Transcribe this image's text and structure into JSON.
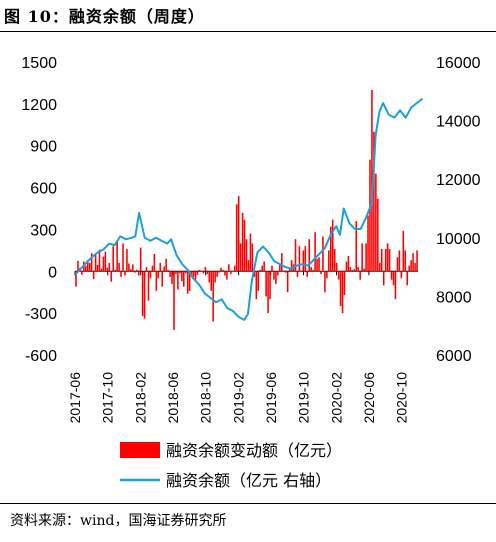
{
  "figure": {
    "title": "图 10：融资余额（周度）",
    "source": "资料来源：wind，国海证券研究所"
  },
  "chart_data": {
    "type": "bar+line",
    "left_axis": {
      "ylim": [
        -600,
        1500
      ],
      "ticks": [
        -600,
        -300,
        0,
        300,
        600,
        900,
        1200,
        1500
      ]
    },
    "right_axis": {
      "ylim": [
        6000,
        16000
      ],
      "ticks": [
        6000,
        8000,
        10000,
        12000,
        14000,
        16000
      ]
    },
    "x_ticks": [
      "2017-06",
      "2017-10",
      "2018-02",
      "2018-06",
      "2018-10",
      "2019-02",
      "2019-06",
      "2019-10",
      "2020-02",
      "2020-06",
      "2020-10"
    ],
    "x_range": [
      "2017-06",
      "2020-12"
    ],
    "legend": [
      {
        "label": "融资余额变动额（亿元）",
        "color": "#ff0000",
        "marker": "bar"
      },
      {
        "label": "融资余额（亿元 右轴）",
        "color": "#1c9fde",
        "marker": "line"
      }
    ],
    "series": [
      {
        "name": "融资余额变动额（亿元）",
        "axis": "left",
        "color": "#ff0000",
        "values": [
          -110,
          75,
          25,
          -25,
          70,
          40,
          80,
          60,
          130,
          -55,
          125,
          45,
          155,
          20,
          105,
          140,
          25,
          60,
          -75,
          180,
          10,
          210,
          60,
          -40,
          200,
          -30,
          160,
          55,
          15,
          50,
          -10,
          10,
          -30,
          170,
          -320,
          -340,
          30,
          -210,
          -50,
          40,
          125,
          -140,
          -50,
          60,
          -110,
          35,
          90,
          10,
          -40,
          -90,
          -420,
          -20,
          -130,
          -15,
          -70,
          -110,
          -15,
          -160,
          -140,
          -30,
          -40,
          -60,
          -25,
          10,
          5,
          -15,
          30,
          -20,
          -80,
          -140,
          -360,
          -80,
          -40,
          -10,
          25,
          10,
          -30,
          -60,
          50,
          -20,
          5,
          40,
          480,
          540,
          200,
          420,
          370,
          230,
          80,
          270,
          200,
          -40,
          -200,
          -140,
          10,
          40,
          70,
          -180,
          -300,
          -200,
          40,
          -60,
          -90,
          -30,
          50,
          130,
          5,
          -10,
          -150,
          15,
          80,
          50,
          230,
          -40,
          180,
          5,
          150,
          180,
          -40,
          230,
          30,
          10,
          280,
          90,
          100,
          -20,
          250,
          -150,
          -50,
          150,
          320,
          370,
          160,
          60,
          -60,
          -250,
          -300,
          -170,
          70,
          110,
          30,
          10,
          15,
          360,
          30,
          -60,
          200,
          20,
          200,
          400,
          800,
          1300,
          1000,
          700,
          520,
          60,
          160,
          -100,
          160,
          200,
          160,
          -60,
          -100,
          -200,
          100,
          150,
          -50,
          290,
          150,
          -100,
          40,
          80,
          130,
          60,
          150
        ]
      },
      {
        "name": "融资余额（亿元 右轴）",
        "axis": "right",
        "color": "#1c9fde",
        "x_dates": [
          "2017-06-02",
          "2017-06-23",
          "2017-07-14",
          "2017-08-04",
          "2017-08-25",
          "2017-09-15",
          "2017-10-06",
          "2017-10-27",
          "2017-11-17",
          "2017-12-08",
          "2017-12-29",
          "2018-01-12",
          "2018-01-26",
          "2018-02-16",
          "2018-03-09",
          "2018-03-30",
          "2018-04-20",
          "2018-05-11",
          "2018-05-25",
          "2018-06-15",
          "2018-07-06",
          "2018-07-27",
          "2018-08-17",
          "2018-09-07",
          "2018-09-28",
          "2018-10-19",
          "2018-11-09",
          "2018-11-30",
          "2018-12-21",
          "2019-01-11",
          "2019-02-01",
          "2019-02-22",
          "2019-03-08",
          "2019-03-22",
          "2019-04-12",
          "2019-05-03",
          "2019-05-24",
          "2019-06-14",
          "2019-07-05",
          "2019-07-26",
          "2019-08-16",
          "2019-09-06",
          "2019-09-27",
          "2019-10-18",
          "2019-11-08",
          "2019-11-29",
          "2019-12-20",
          "2020-01-10",
          "2020-01-31",
          "2020-02-14",
          "2020-02-28",
          "2020-03-20",
          "2020-04-10",
          "2020-05-01",
          "2020-05-22",
          "2020-06-12",
          "2020-06-26",
          "2020-07-10",
          "2020-07-24",
          "2020-08-14",
          "2020-09-04",
          "2020-09-25",
          "2020-10-16",
          "2020-11-06",
          "2020-11-27",
          "2020-12-18"
        ],
        "values": [
          8750,
          8950,
          9150,
          9350,
          9500,
          9600,
          9800,
          9750,
          10050,
          9950,
          10000,
          10050,
          10850,
          10000,
          9900,
          10000,
          9900,
          9800,
          9950,
          9400,
          9100,
          8900,
          8600,
          8400,
          8100,
          7950,
          7800,
          7900,
          7600,
          7500,
          7300,
          7200,
          7400,
          8500,
          9500,
          9700,
          9500,
          9200,
          9100,
          9000,
          8950,
          9050,
          9100,
          9050,
          9250,
          9450,
          9650,
          10100,
          10400,
          10100,
          11000,
          10500,
          10300,
          10300,
          10700,
          11200,
          13500,
          14300,
          14600,
          14200,
          14100,
          14350,
          14100,
          14450,
          14600,
          14750
        ]
      }
    ]
  }
}
